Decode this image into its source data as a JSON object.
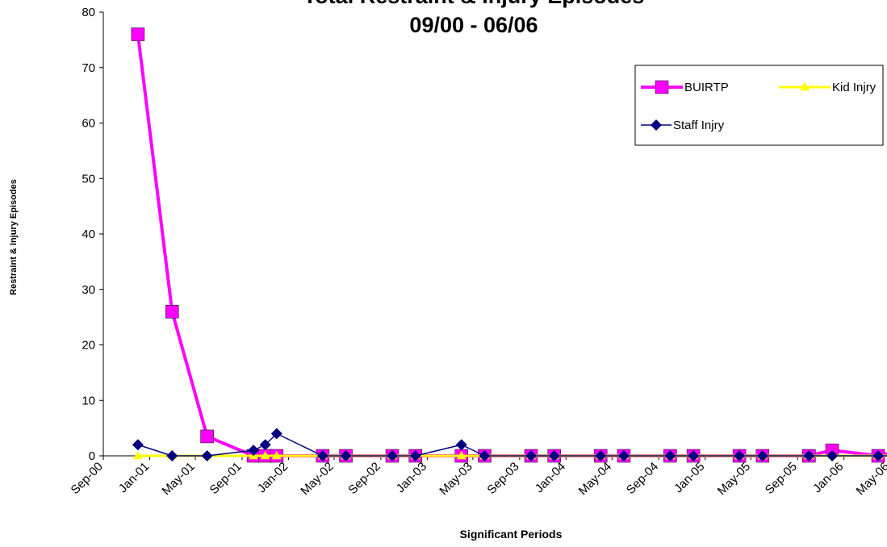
{
  "chart_data": {
    "type": "line",
    "title": "Total Restraint & Injury Episodes",
    "subtitle": "09/00 - 06/06",
    "xlabel": "Significant Periods",
    "ylabel": "Restraint & Injury Episodes",
    "ylim": [
      0,
      80
    ],
    "yticks": [
      0,
      10,
      20,
      30,
      40,
      50,
      60,
      70,
      80
    ],
    "xticks": [
      "Sep-00",
      "Jan-01",
      "May-01",
      "Sep-01",
      "Jan-02",
      "May-02",
      "Sep-02",
      "Jan-03",
      "May-03",
      "Sep-03",
      "Jan-04",
      "May-04",
      "Sep-04",
      "Jan-05",
      "May-05",
      "Sep-05",
      "Jan-06",
      "May-06"
    ],
    "grid": false,
    "legend_position": "top-right",
    "series": [
      {
        "name": "BUIRTP",
        "color": "#ff00ff",
        "marker": "square",
        "x": [
          "2000-12-01",
          "2001-03-01",
          "2001-06-01",
          "2001-10-01",
          "2001-11-01",
          "2001-12-01",
          "2002-04-01",
          "2002-06-01",
          "2002-10-01",
          "2002-12-01",
          "2003-04-01",
          "2003-06-01",
          "2003-10-01",
          "2003-12-01",
          "2004-04-01",
          "2004-06-01",
          "2004-10-01",
          "2004-12-01",
          "2005-04-01",
          "2005-06-01",
          "2005-10-01",
          "2005-12-01",
          "2006-04-01",
          "2006-06-01",
          "2006-08-01"
        ],
        "y": [
          76,
          26,
          3.5,
          0,
          0,
          0,
          0,
          0,
          0,
          0,
          0,
          0,
          0,
          0,
          0,
          0,
          0,
          0,
          0,
          0,
          0,
          1,
          0,
          1,
          0.3
        ]
      },
      {
        "name": "Kid Injry",
        "color": "#ffff00",
        "marker": "triangle",
        "x": [
          "2000-12-01",
          "2001-03-01",
          "2001-06-01",
          "2001-10-01",
          "2001-11-01",
          "2001-12-01",
          "2002-04-01",
          "2002-06-01",
          "2002-10-01",
          "2002-12-01",
          "2003-04-01",
          "2003-06-01",
          "2003-10-01",
          "2003-12-01",
          "2004-04-01",
          "2004-06-01",
          "2004-10-01",
          "2004-12-01",
          "2005-04-01",
          "2005-06-01",
          "2005-10-01",
          "2005-12-01",
          "2006-04-01",
          "2006-06-01"
        ],
        "y": [
          0,
          0,
          0,
          0,
          0,
          0,
          0,
          0,
          0,
          0,
          0,
          0,
          0,
          0,
          0,
          0,
          0,
          0,
          0,
          0,
          0,
          0,
          0,
          0
        ]
      },
      {
        "name": "Staff Injry",
        "color": "#000080",
        "marker": "diamond",
        "x": [
          "2000-12-01",
          "2001-03-01",
          "2001-06-01",
          "2001-10-01",
          "2001-11-01",
          "2001-12-01",
          "2002-04-01",
          "2002-06-01",
          "2002-10-01",
          "2002-12-01",
          "2003-04-01",
          "2003-06-01",
          "2003-10-01",
          "2003-12-01",
          "2004-04-01",
          "2004-06-01",
          "2004-10-01",
          "2004-12-01",
          "2005-04-01",
          "2005-06-01",
          "2005-10-01",
          "2005-12-01",
          "2006-04-01",
          "2006-06-01"
        ],
        "y": [
          2,
          0,
          0,
          1,
          2,
          4,
          0,
          0,
          0,
          0,
          2,
          0,
          0,
          0,
          0,
          0,
          0,
          0,
          0,
          0,
          0,
          0,
          0,
          0
        ]
      }
    ]
  }
}
